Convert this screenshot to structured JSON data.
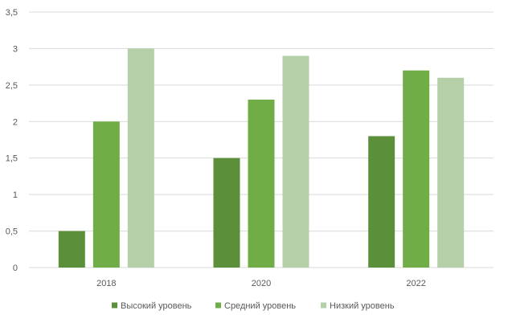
{
  "chart_data": {
    "type": "bar",
    "categories": [
      "2018",
      "2020",
      "2022"
    ],
    "series": [
      {
        "name": "Высокий уровень",
        "values": [
          0.5,
          1.5,
          1.8
        ],
        "color": "#5b8f3a"
      },
      {
        "name": "Средний уровень",
        "values": [
          2.0,
          2.3,
          2.7
        ],
        "color": "#71ad47"
      },
      {
        "name": "Низкий уровень",
        "values": [
          3.0,
          2.9,
          2.6
        ],
        "color": "#b5cfa8"
      }
    ],
    "y_ticks": [
      "0",
      "0,5",
      "1",
      "1,5",
      "2",
      "2,5",
      "3",
      "3,5"
    ],
    "ylim": [
      0,
      3.5
    ],
    "grid": true,
    "gridline_color": "#d9d9d9",
    "legend_position": "bottom",
    "title": "",
    "xlabel": "",
    "ylabel": ""
  }
}
